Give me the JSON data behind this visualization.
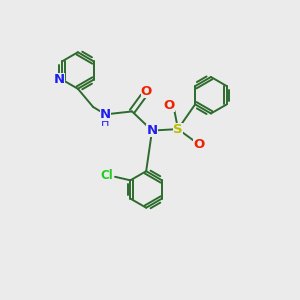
{
  "bg_color": "#ebebeb",
  "bond_color": "#2d6b2d",
  "n_color": "#2020ee",
  "o_color": "#ee2200",
  "s_color": "#bbbb00",
  "cl_color": "#22cc22",
  "line_width": 1.4,
  "dbl_sep": 0.09,
  "ring_r": 0.62,
  "figsize": [
    3.0,
    3.0
  ],
  "dpi": 100,
  "xlim": [
    0,
    10
  ],
  "ylim": [
    0,
    10
  ]
}
